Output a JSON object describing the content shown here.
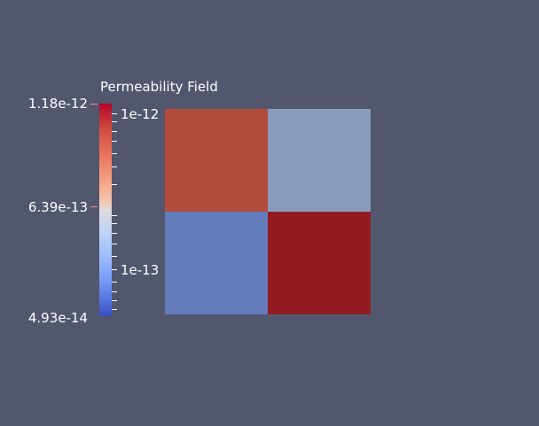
{
  "legend": {
    "title": "Permeability Field",
    "range_max": "1.18e-12",
    "range_mid": "6.39e-13",
    "range_min": "4.93e-14",
    "log_label_upper": "1e-12",
    "log_label_lower": "1e-13"
  },
  "field": {
    "cells": [
      {
        "position": "top-left",
        "color": "#b14b3a"
      },
      {
        "position": "top-right",
        "color": "#8a9dbb"
      },
      {
        "position": "bottom-left",
        "color": "#647cba"
      },
      {
        "position": "bottom-right",
        "color": "#921b22"
      }
    ]
  },
  "colors": {
    "background": "#52576e",
    "colormap_low": "#3b4cc0",
    "colormap_mid": "#dddcdc",
    "colormap_high": "#b40426"
  }
}
